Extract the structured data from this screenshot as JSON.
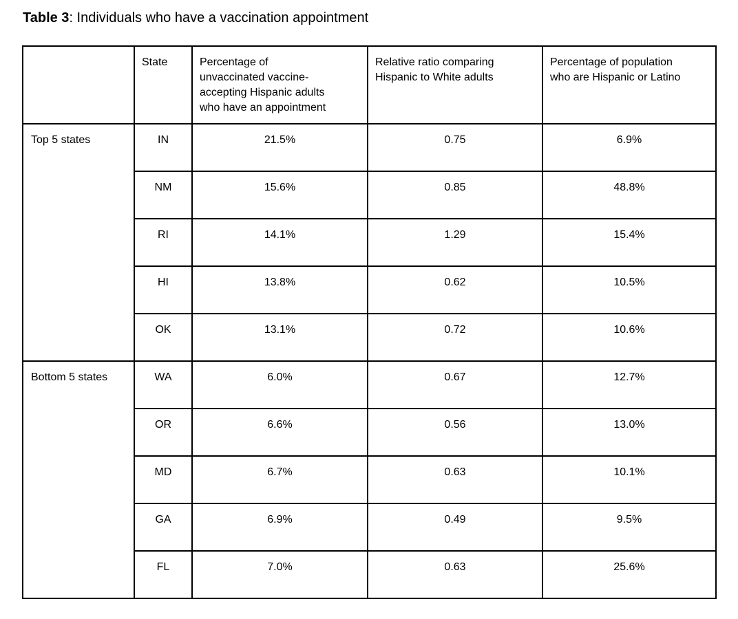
{
  "title": {
    "prefix": "Table 3",
    "suffix": ": Individuals who have a vaccination appointment"
  },
  "colors": {
    "text": "#000000",
    "border": "#000000",
    "background": "#ffffff"
  },
  "table": {
    "headers": {
      "corner": "",
      "state": "State",
      "pct_appointment": "Percentage of\nunvaccinated vaccine-\naccepting Hispanic adults\nwho have an appointment",
      "relative_ratio": "Relative ratio comparing\nHispanic to White adults",
      "pct_population": "Percentage of population\nwho are Hispanic or Latino"
    },
    "groups": [
      {
        "label": "Top 5 states",
        "rows": [
          {
            "state": "IN",
            "pct_appointment": "21.5%",
            "relative_ratio": "0.75",
            "pct_population": "6.9%"
          },
          {
            "state": "NM",
            "pct_appointment": "15.6%",
            "relative_ratio": "0.85",
            "pct_population": "48.8%"
          },
          {
            "state": "RI",
            "pct_appointment": "14.1%",
            "relative_ratio": "1.29",
            "pct_population": "15.4%"
          },
          {
            "state": "HI",
            "pct_appointment": "13.8%",
            "relative_ratio": "0.62",
            "pct_population": "10.5%"
          },
          {
            "state": "OK",
            "pct_appointment": "13.1%",
            "relative_ratio": "0.72",
            "pct_population": "10.6%"
          }
        ]
      },
      {
        "label": "Bottom 5 states",
        "rows": [
          {
            "state": "WA",
            "pct_appointment": "6.0%",
            "relative_ratio": "0.67",
            "pct_population": "12.7%"
          },
          {
            "state": "OR",
            "pct_appointment": "6.6%",
            "relative_ratio": "0.56",
            "pct_population": "13.0%"
          },
          {
            "state": "MD",
            "pct_appointment": "6.7%",
            "relative_ratio": "0.63",
            "pct_population": "10.1%"
          },
          {
            "state": "GA",
            "pct_appointment": "6.9%",
            "relative_ratio": "0.49",
            "pct_population": "9.5%"
          },
          {
            "state": "FL",
            "pct_appointment": "7.0%",
            "relative_ratio": "0.63",
            "pct_population": "25.6%"
          }
        ]
      }
    ]
  }
}
